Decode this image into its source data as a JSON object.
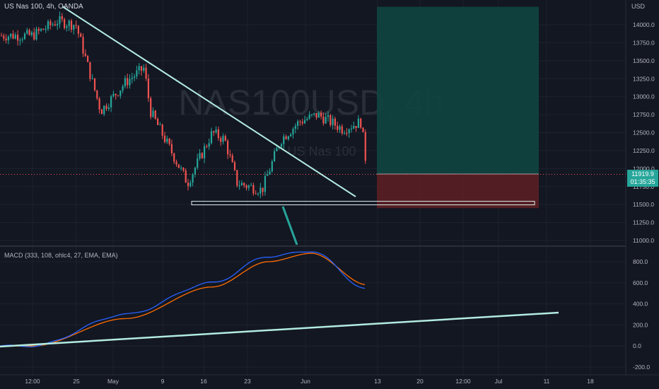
{
  "header": {
    "symbol_label": "US Nas 100, 4h, OANDA",
    "currency": "USD"
  },
  "watermark": {
    "main": "NAS100USD, 4h",
    "sub": "US Nas 100"
  },
  "macd_label": "MACD (333, 108, ohlc4, 27, EMA, EMA)",
  "last_price": {
    "value": "11919.9",
    "countdown": "01:35:35"
  },
  "colors": {
    "up": "#26a69a",
    "down": "#ef5350",
    "macd": "#2962ff",
    "signal": "#ff6d00",
    "trend": "#b2ebe0",
    "target_zone": "#0f4540",
    "stop_zone": "#5b1f24"
  },
  "price_axis": [
    "14000.0",
    "13750.0",
    "13500.0",
    "13250.0",
    "13000.0",
    "12750.0",
    "12500.0",
    "12250.0",
    "12000.0",
    "11750.0",
    "11500.0",
    "11250.0",
    "11000.0"
  ],
  "macd_axis": [
    "800.0",
    "600.0",
    "400.0",
    "200.0",
    "0.0",
    "-200.0"
  ],
  "time_axis": [
    "12:00",
    "25",
    "May",
    "9",
    "16",
    "23",
    "Jun",
    "13",
    "20",
    "12:00",
    "Jul",
    "11",
    "18"
  ],
  "chart_data": {
    "type": "candlestick",
    "timeframe": "4h",
    "y_range": [
      10900,
      14250
    ],
    "close_path": [
      {
        "t": "Apr 18",
        "price": 13850
      },
      {
        "t": "Apr 22",
        "price": 14050
      },
      {
        "t": "Apr 25",
        "price": 14000
      },
      {
        "t": "Apr 27",
        "price": 13400
      },
      {
        "t": "Apr 29",
        "price": 12800
      },
      {
        "t": "May 2",
        "price": 13200
      },
      {
        "t": "May 5",
        "price": 13400
      },
      {
        "t": "May 6",
        "price": 12800
      },
      {
        "t": "May 9",
        "price": 12300
      },
      {
        "t": "May 12",
        "price": 11800
      },
      {
        "t": "May 16",
        "price": 12500
      },
      {
        "t": "May 18",
        "price": 12400
      },
      {
        "t": "May 20",
        "price": 11800
      },
      {
        "t": "May 24",
        "price": 11700
      },
      {
        "t": "May 27",
        "price": 12400
      },
      {
        "t": "May 30",
        "price": 12650
      },
      {
        "t": "Jun 2",
        "price": 12750
      },
      {
        "t": "Jun 6",
        "price": 12550
      },
      {
        "t": "Jun 9",
        "price": 12650
      },
      {
        "t": "Jun 10",
        "price": 11920
      }
    ],
    "last": 11919.9,
    "support_level": 11520,
    "position": {
      "entry": 11925,
      "target": 14250,
      "stop": 11450
    },
    "macd": {
      "params": "333, 108, ohlc4, 27, EMA, EMA",
      "macd_points": [
        {
          "t": "Apr 18",
          "v": 0
        },
        {
          "t": "May 2",
          "v": 300
        },
        {
          "t": "May 16",
          "v": 600
        },
        {
          "t": "May 25",
          "v": 850
        },
        {
          "t": "Jun 1",
          "v": 900
        },
        {
          "t": "Jun 10",
          "v": 540
        }
      ],
      "signal_points": [
        {
          "t": "Apr 18",
          "v": 0
        },
        {
          "t": "May 2",
          "v": 260
        },
        {
          "t": "May 16",
          "v": 560
        },
        {
          "t": "May 25",
          "v": 800
        },
        {
          "t": "Jun 1",
          "v": 880
        },
        {
          "t": "Jun 10",
          "v": 580
        }
      ],
      "y_range": [
        -260,
        960
      ]
    }
  }
}
